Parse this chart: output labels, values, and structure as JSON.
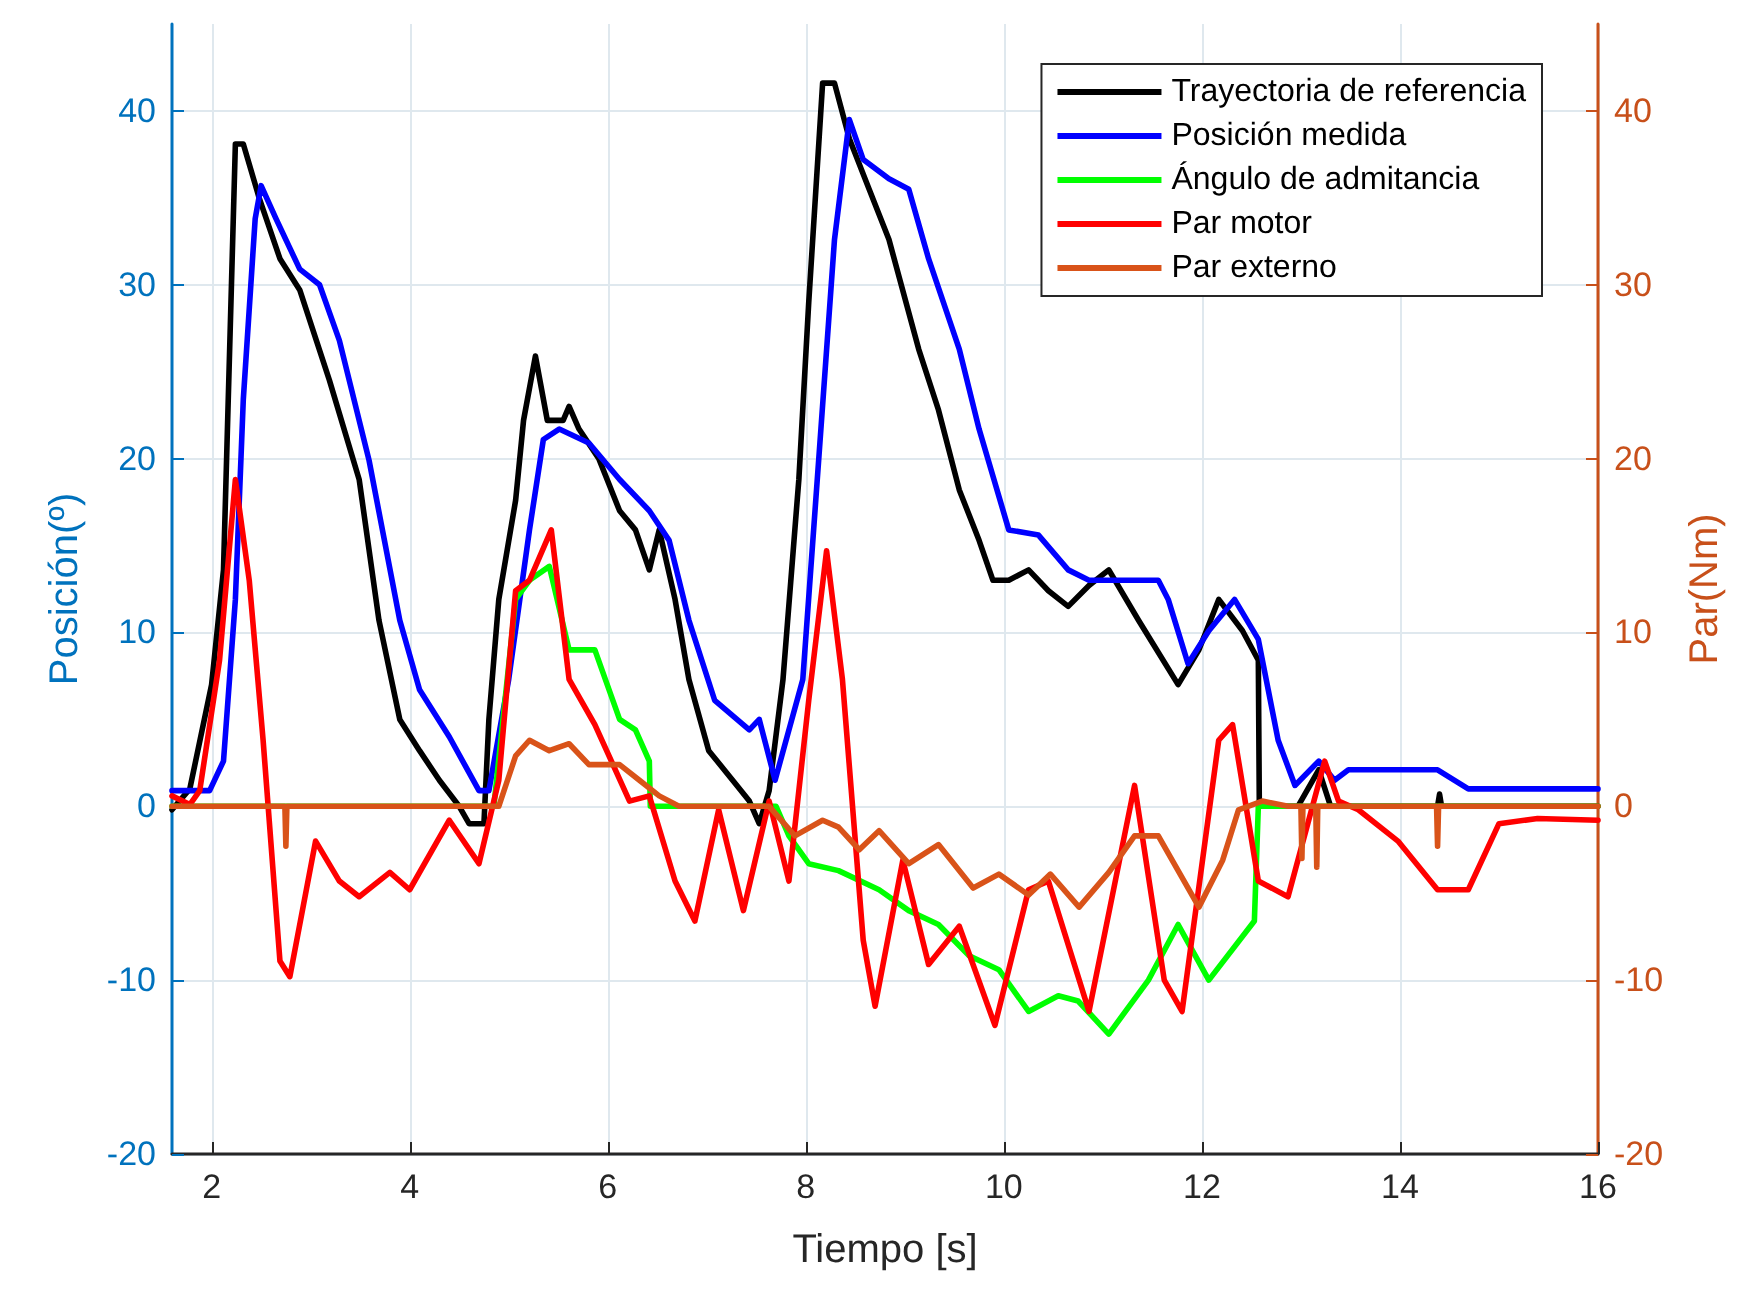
{
  "chart_data": {
    "type": "line",
    "xlabel": "Tiempo [s]",
    "ylabel": "Posición(º)",
    "y2label": "Par(Nm)",
    "xlim": [
      1.6,
      16
    ],
    "xticks": [
      2,
      4,
      6,
      8,
      10,
      12,
      14,
      16
    ],
    "ylim": [
      -20,
      45
    ],
    "yticks": [
      -20,
      -10,
      0,
      10,
      20,
      30,
      40
    ],
    "y2lim": [
      -20,
      45
    ],
    "y2ticks": [
      -20,
      -10,
      0,
      10,
      20,
      30,
      40
    ],
    "grid": true,
    "legend": "top right",
    "marker": "none",
    "line_style": "solid",
    "series": [
      {
        "name": "Trayectoria de referencia",
        "color": "#000000",
        "x": [
          1.6,
          1.78,
          2,
          2.12,
          2.24,
          2.32,
          2.48,
          2.69,
          2.89,
          3.19,
          3.49,
          3.69,
          3.9,
          4.1,
          4.3,
          4.5,
          4.6,
          4.75,
          4.8,
          4.9,
          5.07,
          5.15,
          5.27,
          5.39,
          5.55,
          5.61,
          5.71,
          5.91,
          6.12,
          6.28,
          6.42,
          6.52,
          6.68,
          6.82,
          7.02,
          7.29,
          7.43,
          7.53,
          7.63,
          7.77,
          7.93,
          8.03,
          8.17,
          8.29,
          8.44,
          8.64,
          8.84,
          9.14,
          9.34,
          9.55,
          9.75,
          9.89,
          10.05,
          10.25,
          10.45,
          10.65,
          10.86,
          11.06,
          11.36,
          11.76,
          11.97,
          12.17,
          12.41,
          12.57,
          12.58,
          12.97,
          13.18,
          13.3,
          14.38,
          14.4,
          14.42,
          16
        ],
        "values": [
          -0.2,
          1,
          7,
          13.6,
          38.1,
          38.1,
          35,
          31.5,
          29.7,
          24.5,
          18.8,
          10.7,
          5,
          3.2,
          1.5,
          0,
          -1,
          -1,
          5,
          11.9,
          17.6,
          22.2,
          25.9,
          22.2,
          22.2,
          23,
          21.7,
          20,
          17,
          15.9,
          13.6,
          15.9,
          11.9,
          7.3,
          3.2,
          1.3,
          0.3,
          -1,
          0.9,
          7.3,
          18.8,
          29,
          41.6,
          41.6,
          38.4,
          35.5,
          32.6,
          26.3,
          22.8,
          18.2,
          15.3,
          13,
          13,
          13.6,
          12.4,
          11.5,
          12.7,
          13.6,
          10.7,
          7,
          9,
          11.9,
          10.1,
          8.4,
          0,
          0,
          2.1,
          0,
          0,
          0.7,
          0,
          0
        ]
      },
      {
        "name": "Posición medida",
        "color": "#0000ff",
        "x": [
          1.6,
          1.98,
          2.12,
          2.24,
          2.32,
          2.44,
          2.5,
          2.65,
          2.89,
          3.09,
          3.29,
          3.59,
          3.9,
          4.1,
          4.4,
          4.7,
          4.8,
          5,
          5.21,
          5.35,
          5.51,
          5.81,
          6.12,
          6.42,
          6.62,
          6.82,
          7.08,
          7.43,
          7.53,
          7.69,
          7.97,
          8.13,
          8.29,
          8.44,
          8.58,
          8.84,
          9.04,
          9.24,
          9.55,
          9.75,
          10.05,
          10.35,
          10.65,
          10.86,
          11.56,
          11.66,
          11.86,
          12.07,
          12.33,
          12.57,
          12.77,
          12.94,
          13.18,
          13.34,
          13.48,
          14.38,
          14.69,
          16
        ],
        "values": [
          0.9,
          0.9,
          2.6,
          11.9,
          23.4,
          33.8,
          35.7,
          33.8,
          30.9,
          30,
          26.8,
          19.9,
          10.7,
          6.7,
          4,
          0.9,
          0.9,
          7.3,
          15.9,
          21.1,
          21.7,
          20.9,
          18.8,
          17,
          15.3,
          10.7,
          6.1,
          4.4,
          5,
          1.5,
          7.3,
          19.9,
          32.6,
          39.5,
          37.2,
          36.1,
          35.5,
          31.5,
          26.3,
          21.7,
          15.9,
          15.6,
          13.6,
          13,
          13,
          11.9,
          8.2,
          10.1,
          11.9,
          9.6,
          3.8,
          1.2,
          2.6,
          1.5,
          2.1,
          2.1,
          1,
          1
        ]
      },
      {
        "name": "Ángulo de admitancia",
        "color": "#00ff00",
        "x": [
          1.6,
          4.85,
          5.07,
          5.21,
          5.41,
          5.61,
          5.87,
          6.12,
          6.28,
          6.42,
          6.43,
          7.7,
          7.83,
          8.03,
          8.33,
          8.74,
          9.04,
          9.34,
          9.65,
          9.95,
          10.25,
          10.55,
          10.75,
          11.06,
          11.46,
          11.76,
          12.07,
          12.53,
          12.57,
          16
        ],
        "values": [
          0,
          0,
          11.9,
          13,
          13.8,
          9,
          9,
          5,
          4.4,
          2.6,
          0,
          0,
          -1.7,
          -3.3,
          -3.7,
          -4.8,
          -6,
          -6.8,
          -8.6,
          -9.4,
          -11.8,
          -10.9,
          -11.2,
          -13.1,
          -10,
          -6.8,
          -10,
          -6.6,
          0,
          0
        ]
      },
      {
        "name": "Par motor",
        "color": "#ff0000",
        "x": [
          1.6,
          1.78,
          1.88,
          2.08,
          2.24,
          2.38,
          2.52,
          2.69,
          2.79,
          3.05,
          3.29,
          3.49,
          3.8,
          4,
          4.4,
          4.7,
          4.9,
          5.07,
          5.21,
          5.43,
          5.61,
          5.87,
          6.22,
          6.42,
          6.68,
          6.88,
          7.12,
          7.37,
          7.63,
          7.83,
          8.03,
          8.21,
          8.37,
          8.58,
          8.7,
          8.98,
          9.24,
          9.55,
          9.91,
          10.25,
          10.45,
          10.86,
          11.32,
          11.62,
          11.8,
          12.17,
          12.31,
          12.57,
          12.87,
          13.24,
          13.38,
          13.58,
          13.98,
          14.38,
          14.69,
          15,
          15.39,
          16
        ],
        "values": [
          0.6,
          0.1,
          0.9,
          8.4,
          18.8,
          13,
          3.8,
          -8.9,
          -9.8,
          -2,
          -4.3,
          -5.2,
          -3.8,
          -4.8,
          -0.8,
          -3.3,
          1.5,
          12.4,
          13,
          15.9,
          7.3,
          4.7,
          0.3,
          0.6,
          -4.3,
          -6.6,
          -0.2,
          -6,
          0.3,
          -4.3,
          6.1,
          14.7,
          7.3,
          -7.7,
          -11.5,
          -3.1,
          -9.1,
          -6.9,
          -12.6,
          -4.8,
          -4.3,
          -11.8,
          1.2,
          -10,
          -11.8,
          3.8,
          4.7,
          -4.3,
          -5.2,
          2.6,
          0.3,
          -0.2,
          -2,
          -4.8,
          -4.8,
          -1,
          -0.7,
          -0.8
        ]
      },
      {
        "name": "Par externo",
        "color": "#d95319",
        "x": [
          1.6,
          2.74,
          2.75,
          2.76,
          4.9,
          5.07,
          5.21,
          5.41,
          5.61,
          5.81,
          6.12,
          6.32,
          6.52,
          6.72,
          7.63,
          7.89,
          8.17,
          8.33,
          8.54,
          8.74,
          9.04,
          9.34,
          9.69,
          9.95,
          10.25,
          10.47,
          10.76,
          11.06,
          11.32,
          11.56,
          11.97,
          12.21,
          12.37,
          12.61,
          12.87,
          13,
          13.01,
          13.02,
          13.15,
          13.16,
          13.17,
          14.37,
          14.38,
          14.39,
          16
        ],
        "values": [
          0,
          0,
          -2.3,
          0,
          0,
          2.9,
          3.8,
          3.2,
          3.6,
          2.4,
          2.4,
          1.5,
          0.6,
          0,
          0,
          -1.7,
          -0.8,
          -1.2,
          -2.5,
          -1.4,
          -3.3,
          -2.2,
          -4.7,
          -3.9,
          -5.1,
          -3.9,
          -5.8,
          -3.8,
          -1.7,
          -1.7,
          -5.8,
          -3.1,
          -0.2,
          0.3,
          0,
          0,
          -3,
          0,
          0,
          -3.5,
          0,
          0,
          -2.3,
          0,
          0
        ]
      }
    ]
  }
}
